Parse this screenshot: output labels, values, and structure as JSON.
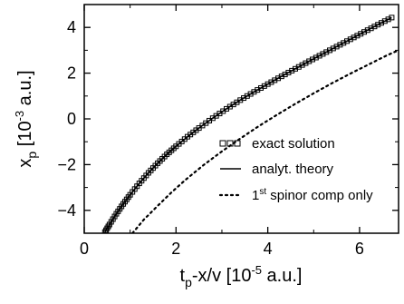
{
  "chart_data": {
    "type": "line",
    "xlabel": {
      "prefix": "t",
      "sub": "p",
      "mid": "-x/v [10",
      "sup": "-5",
      "suffix": " a.u.]"
    },
    "ylabel": {
      "prefix": "x",
      "sub": "p",
      "mid": " [10",
      "sup": "-3",
      "suffix": " a.u.]"
    },
    "xlim": [
      0,
      6.85
    ],
    "ylim": [
      -5.0,
      5.0
    ],
    "xticks": [
      "0",
      "2",
      "4",
      "6"
    ],
    "yticks": [
      "-4",
      "-2",
      "0",
      "2",
      "4"
    ],
    "legend_position": "bottom-right",
    "series": [
      {
        "name": "exact solution",
        "style": "square-markers",
        "color": "#000000",
        "x": [
          0.45,
          0.55,
          0.7,
          0.85,
          1.0,
          1.2,
          1.4,
          1.6,
          1.8,
          2.0,
          2.25,
          2.5,
          2.8,
          3.1,
          3.4,
          3.7,
          4.0,
          4.3,
          4.6,
          4.9,
          5.2,
          5.5,
          5.8,
          6.1,
          6.4,
          6.7
        ],
        "y": [
          -4.95,
          -4.62,
          -4.15,
          -3.72,
          -3.32,
          -2.82,
          -2.36,
          -1.94,
          -1.55,
          -1.2,
          -0.78,
          -0.4,
          0.03,
          0.44,
          0.82,
          1.18,
          1.52,
          1.86,
          2.19,
          2.52,
          2.84,
          3.16,
          3.48,
          3.8,
          4.12,
          4.43
        ]
      },
      {
        "name": "analyt. theory",
        "style": "solid",
        "color": "#000000",
        "x": [
          0.45,
          0.55,
          0.7,
          0.85,
          1.0,
          1.2,
          1.4,
          1.6,
          1.8,
          2.0,
          2.25,
          2.5,
          2.8,
          3.1,
          3.4,
          3.7,
          4.0,
          4.3,
          4.6,
          4.9,
          5.2,
          5.5,
          5.8,
          6.1,
          6.4,
          6.7
        ],
        "y": [
          -4.95,
          -4.62,
          -4.15,
          -3.72,
          -3.32,
          -2.82,
          -2.36,
          -1.94,
          -1.55,
          -1.2,
          -0.78,
          -0.4,
          0.03,
          0.44,
          0.82,
          1.18,
          1.52,
          1.86,
          2.19,
          2.52,
          2.84,
          3.16,
          3.48,
          3.8,
          4.12,
          4.43
        ]
      },
      {
        "name": "1st spinor comp only",
        "label": {
          "pre": "1",
          "sup": "st",
          "post": " spinor comp only"
        },
        "style": "dotted",
        "color": "#000000",
        "x": [
          1.05,
          1.3,
          1.6,
          1.9,
          2.2,
          2.6,
          3.0,
          3.4,
          3.8,
          4.2,
          4.6,
          5.0,
          5.4,
          5.8,
          6.2,
          6.6,
          6.85
        ],
        "y": [
          -5.0,
          -4.4,
          -3.8,
          -3.22,
          -2.68,
          -2.02,
          -1.42,
          -0.86,
          -0.32,
          0.18,
          0.66,
          1.12,
          1.56,
          1.98,
          2.38,
          2.78,
          3.0
        ]
      }
    ]
  }
}
